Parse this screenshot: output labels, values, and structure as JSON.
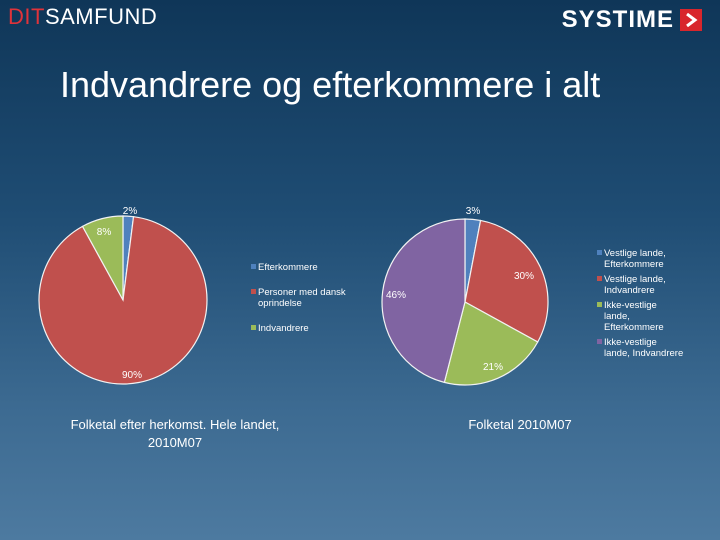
{
  "header": {
    "brand_left_part1": "DIT",
    "brand_left_part2": "SAMFUND",
    "brand_right": "SYSTIME"
  },
  "title": "Indvandrere og efterkommere i alt",
  "colors": {
    "blue": "#4f81bd",
    "red": "#c0504d",
    "green": "#9bbb59",
    "purple": "#8064a2",
    "brand_red": "#d8262c"
  },
  "chart_data": [
    {
      "type": "pie",
      "title": "Folketal efter herkomst. Hele landet, 2010M07",
      "slices": [
        {
          "name": "Efterkommere",
          "value": 2,
          "label": "2%",
          "color": "#4f81bd"
        },
        {
          "name": "Personer med dansk oprindelse",
          "value": 90,
          "label": "90%",
          "color": "#c0504d"
        },
        {
          "name": "Indvandrere",
          "value": 8,
          "label": "8%",
          "color": "#9bbb59"
        }
      ],
      "legend": [
        "Efterkommere",
        "Personer med dansk oprindelse",
        "Indvandrere"
      ],
      "legend_placement": "right"
    },
    {
      "type": "pie",
      "title": "Folketal 2010M07",
      "slices": [
        {
          "name": "Vestlige lande, Efterkommere",
          "value": 3,
          "label": "3%",
          "color": "#4f81bd"
        },
        {
          "name": "Vestlige lande, Indvandrere",
          "value": 30,
          "label": "30%",
          "color": "#c0504d"
        },
        {
          "name": "Ikke-vestlige lande, Efterkommere",
          "value": 21,
          "label": "21%",
          "color": "#9bbb59"
        },
        {
          "name": "Ikke-vestlige lande, Indvandrere",
          "value": 46,
          "label": "46%",
          "color": "#8064a2"
        }
      ],
      "legend": [
        "Vestlige lande, Efterkommere",
        "Vestlige lande, Indvandrere",
        "Ikke-vestlige lande, Efterkommere",
        "Ikke-vestlige lande, Indvandrere"
      ],
      "legend_placement": "right"
    }
  ],
  "captions": {
    "left_line1": "Folketal efter herkomst. Hele landet,",
    "left_line2": "2010M07",
    "right": "Folketal 2010M07"
  }
}
